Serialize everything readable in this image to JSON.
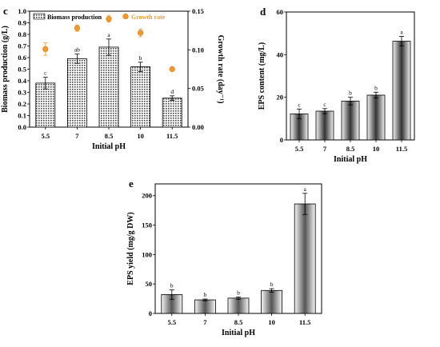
{
  "chart_data": [
    {
      "panel": "c",
      "type": "bar",
      "categories": [
        "5.5",
        "7",
        "8.5",
        "10",
        "11.5"
      ],
      "xlabel": "Initial pH",
      "ylabel": "Biomass production (g/L)",
      "ylim": [
        0,
        1.0
      ],
      "yticks": [
        "0.0",
        "0.1",
        "0.2",
        "0.3",
        "0.4",
        "0.5",
        "0.6",
        "0.7",
        "0.8",
        "0.9",
        "1.0"
      ],
      "y2label": "Growth rate (day⁻¹)",
      "y2lim": [
        0,
        0.15
      ],
      "y2ticks": [
        "0.00",
        "0.05",
        "0.10",
        "0.15"
      ],
      "legend_position": "top",
      "series": [
        {
          "name": "Biomass production",
          "type": "bar",
          "axis": "left",
          "values": [
            0.38,
            0.59,
            0.69,
            0.52,
            0.25
          ],
          "errors": [
            0.05,
            0.04,
            0.07,
            0.04,
            0.02
          ],
          "labels": [
            "c",
            "ab",
            "a",
            "b",
            "d"
          ]
        },
        {
          "name": "Growth rate",
          "type": "scatter",
          "axis": "right",
          "values": [
            0.101,
            0.128,
            0.14,
            0.122,
            0.075
          ],
          "errors": [
            0.008,
            0.004,
            0.004,
            0.005,
            0.002
          ]
        }
      ]
    },
    {
      "panel": "d",
      "type": "bar",
      "categories": [
        "5.5",
        "7",
        "8.5",
        "10",
        "11.5"
      ],
      "xlabel": "Initial pH",
      "ylabel": "EPS content (mg/L)",
      "ylim": [
        0,
        60
      ],
      "yticks": [
        "0",
        "20",
        "40",
        "60"
      ],
      "series": [
        {
          "values": [
            12.2,
            13.5,
            18.2,
            21.0,
            46.3
          ],
          "errors": [
            2.3,
            1.2,
            1.8,
            1.4,
            2.3
          ],
          "labels": [
            "c",
            "c",
            "b",
            "b",
            "a"
          ]
        }
      ]
    },
    {
      "panel": "e",
      "type": "bar",
      "categories": [
        "5.5",
        "7",
        "8.5",
        "10",
        "11.5"
      ],
      "xlabel": "Initial pH",
      "ylabel": "EPS yield (mg/g DW)",
      "ylim": [
        0,
        220
      ],
      "yticks": [
        "0",
        "50",
        "100",
        "150",
        "200"
      ],
      "series": [
        {
          "values": [
            32.0,
            23.0,
            26.0,
            39.0,
            186.0
          ],
          "errors": [
            8.0,
            1.5,
            2.0,
            3.0,
            18.0
          ],
          "labels": [
            "b",
            "b",
            "b",
            "b",
            "a"
          ]
        }
      ]
    }
  ],
  "colors": {
    "growth_marker": "#f39a2b",
    "growth_marker_edge": "#d9781a",
    "bar_edge": "#000000"
  }
}
